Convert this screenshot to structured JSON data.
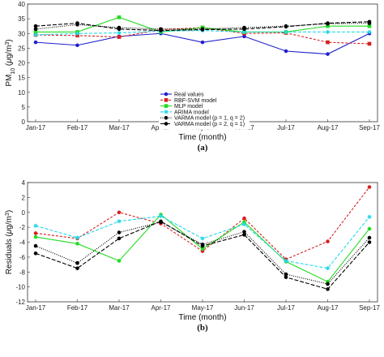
{
  "chart_data": [
    {
      "type": "line",
      "caption": "(a)",
      "xlabel": "Time (month)",
      "ylabel_base": "PM",
      "ylabel_sub": "10",
      "ylabel_unit_open": " (",
      "ylabel_mu": "μ",
      "ylabel_unit_mid": "g/m",
      "ylabel_sup": "3",
      "ylabel_unit_close": ")",
      "categories": [
        "Jan-17",
        "Feb-17",
        "Mar-17",
        "Apr-17",
        "May-17",
        "Jun-17",
        "Jul-17",
        "Aug-17",
        "Sep-17"
      ],
      "ylim": [
        0,
        40
      ],
      "yticks": [
        0,
        5,
        10,
        15,
        20,
        25,
        30,
        35,
        40
      ],
      "grid": false,
      "legend_position": "bottom-center",
      "series": [
        {
          "name": "Real values",
          "color": "#1f1fcf",
          "dash": "",
          "marker": "dot",
          "values": [
            27,
            26,
            29,
            30,
            27,
            29,
            24,
            23,
            30
          ]
        },
        {
          "name": "RBF-SVM model",
          "color": "#d62020",
          "dash": "3,2",
          "marker": "square",
          "values": [
            29.5,
            29.3,
            28.8,
            31.3,
            32,
            30,
            30.2,
            27,
            26.5
          ]
        },
        {
          "name": "MLP model",
          "color": "#22dd22",
          "dash": "",
          "marker": "square",
          "values": [
            30.5,
            30.5,
            35.5,
            30.5,
            32,
            30.5,
            30.5,
            32.5,
            32.5
          ]
        },
        {
          "name": "ARIMA model",
          "color": "#22d8e8",
          "dash": "4,2",
          "marker": "star",
          "values": [
            29.5,
            30,
            30.2,
            30.8,
            31,
            30.5,
            30.5,
            30.5,
            30.5
          ]
        },
        {
          "name": "VARMA model (p = 1, q = 2)",
          "color": "#000000",
          "dash": "1,1.5",
          "marker": "dot",
          "values": [
            31.5,
            33,
            32,
            31.5,
            31.5,
            32,
            32.5,
            33.3,
            33.5
          ]
        },
        {
          "name": "VARMA model (p = 2, q = 1)",
          "color": "#000000",
          "dash": "5,2",
          "marker": "dot",
          "values": [
            32.5,
            33.5,
            31.5,
            31,
            31.3,
            31.5,
            32.3,
            33.5,
            34
          ]
        }
      ]
    },
    {
      "type": "line",
      "caption": "(b)",
      "xlabel": "Time (month)",
      "ylabel_base": "Residuals",
      "ylabel_unit_open": " (",
      "ylabel_mu": "μ",
      "ylabel_unit_mid": "g/m",
      "ylabel_sup": "3",
      "ylabel_unit_close": ")",
      "categories": [
        "Jan-17",
        "Feb-17",
        "Mar-17",
        "Apr-17",
        "May-17",
        "Jun-17",
        "Jul-17",
        "Aug-17",
        "Sep-17"
      ],
      "ylim": [
        -12,
        4
      ],
      "yticks": [
        -12,
        -10,
        -8,
        -6,
        -4,
        -2,
        0,
        2,
        4
      ],
      "grid": false,
      "series": [
        {
          "name": "RBF-SVM model",
          "color": "#d62020",
          "dash": "3,2",
          "marker": "dot",
          "values": [
            -2.8,
            -3.5,
            0,
            -1.5,
            -5.2,
            -0.8,
            -6.3,
            -3.9,
            3.4
          ]
        },
        {
          "name": "MLP model",
          "color": "#22dd22",
          "dash": "",
          "marker": "dot",
          "values": [
            -3.3,
            -4.2,
            -6.5,
            -0.3,
            -4.9,
            -1.3,
            -6.6,
            -9.3,
            -2.2
          ]
        },
        {
          "name": "ARIMA model",
          "color": "#22d8e8",
          "dash": "4,2",
          "marker": "star",
          "values": [
            -1.8,
            -3.4,
            -1.2,
            -0.5,
            -3.5,
            -1.6,
            -6.5,
            -7.5,
            -0.6
          ]
        },
        {
          "name": "VARMA model (p = 1, q = 2)",
          "color": "#000000",
          "dash": "1,1.5",
          "marker": "dot",
          "values": [
            -4.5,
            -6.8,
            -2.7,
            -1.3,
            -4.3,
            -2.6,
            -8.3,
            -9.6,
            -3.4
          ]
        },
        {
          "name": "VARMA model (p = 2, q = 1)",
          "color": "#000000",
          "dash": "5,2",
          "marker": "dot",
          "values": [
            -5.5,
            -7.5,
            -3.5,
            -1.2,
            -4.5,
            -3.0,
            -8.7,
            -10.3,
            -4.0
          ]
        }
      ]
    }
  ]
}
